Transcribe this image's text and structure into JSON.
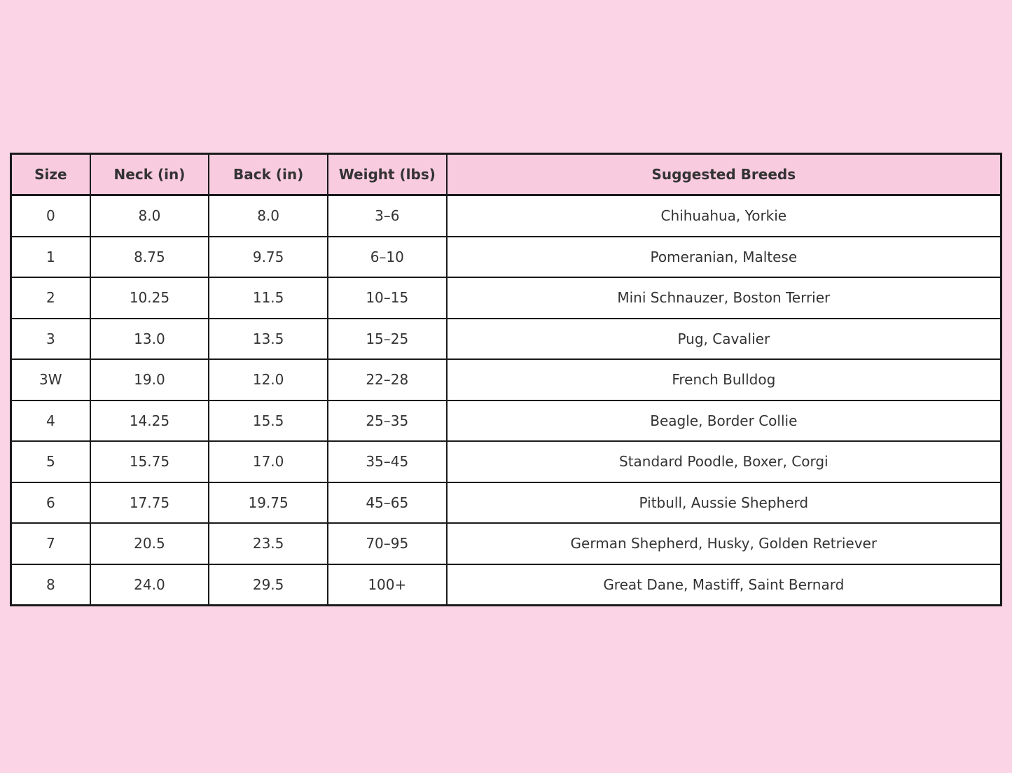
{
  "page": {
    "background_color": "#fbd5e6"
  },
  "chart_data": {
    "type": "table",
    "columns": [
      "Size",
      "Neck (in)",
      "Back (in)",
      "Weight (lbs)",
      "Suggested Breeds"
    ],
    "rows": [
      [
        "0",
        "8.0",
        "8.0",
        "3–6",
        "Chihuahua, Yorkie"
      ],
      [
        "1",
        "8.75",
        "9.75",
        "6–10",
        "Pomeranian, Maltese"
      ],
      [
        "2",
        "10.25",
        "11.5",
        "10–15",
        "Mini Schnauzer, Boston Terrier"
      ],
      [
        "3",
        "13.0",
        "13.5",
        "15–25",
        "Pug, Cavalier"
      ],
      [
        "3W",
        "19.0",
        "12.0",
        "22–28",
        "French Bulldog"
      ],
      [
        "4",
        "14.25",
        "15.5",
        "25–35",
        "Beagle, Border Collie"
      ],
      [
        "5",
        "15.75",
        "17.0",
        "35–45",
        "Standard Poodle, Boxer, Corgi"
      ],
      [
        "6",
        "17.75",
        "19.75",
        "45–65",
        "Pitbull, Aussie Shepherd"
      ],
      [
        "7",
        "20.5",
        "23.5",
        "70–95",
        "German Shepherd, Husky, Golden Retriever"
      ],
      [
        "8",
        "24.0",
        "29.5",
        "100+",
        "Great Dane, Mastiff, Saint Bernard"
      ]
    ],
    "layout": {
      "grid": "full-borders",
      "header_position": "top"
    },
    "colors": {
      "header_background": "#f9cbdf",
      "cell_background": "#ffffff",
      "border_color": "#1a1a1a",
      "text_color": "#333333"
    }
  }
}
